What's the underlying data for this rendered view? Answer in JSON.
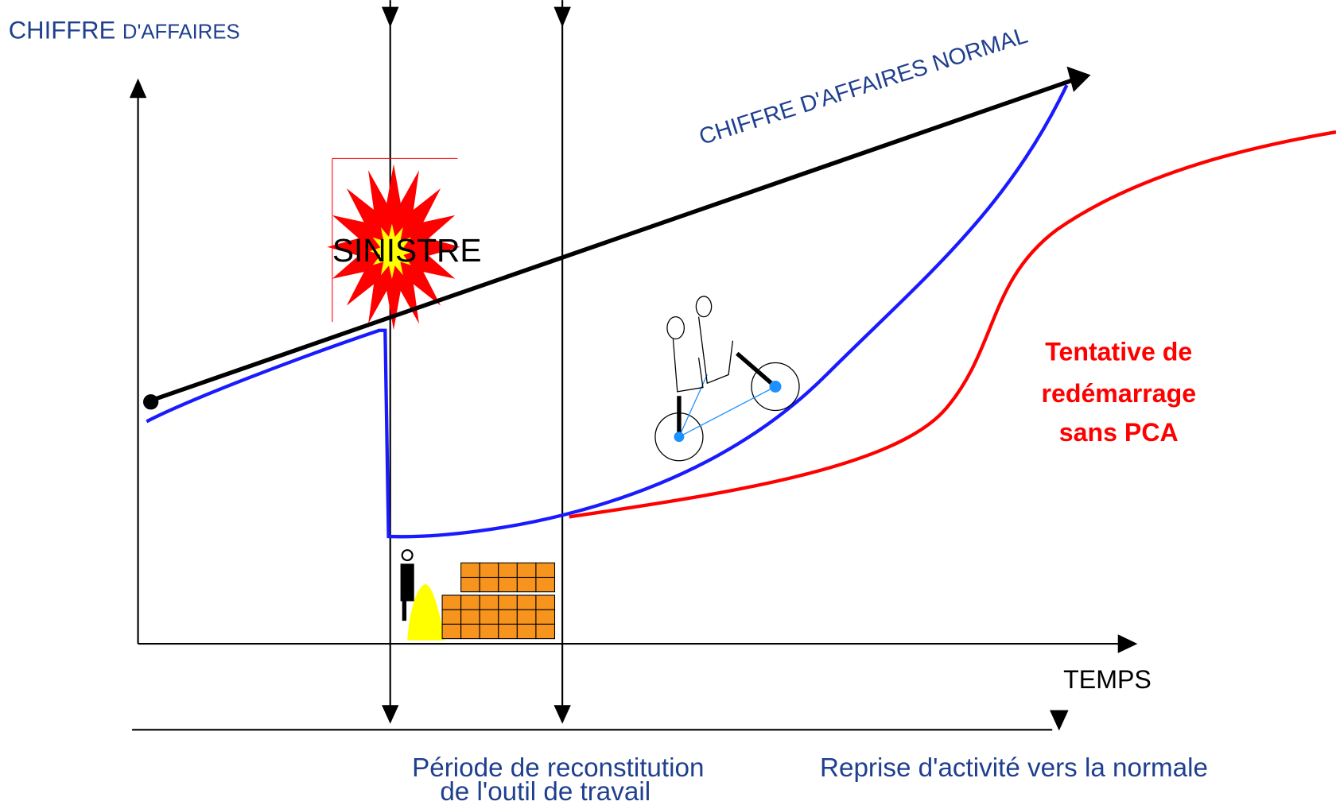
{
  "y_axis_label": {
    "main": "CHIFFRE",
    "rest": "D'AFFAIRES"
  },
  "normal_line_label": "CHIFFRE D'AFFAIRES NORMAL",
  "event_label": "SINISTRE",
  "red_curve_label": [
    "Tentative de",
    "redémarrage",
    "sans PCA"
  ],
  "x_axis_label": "TEMPS",
  "phases": [
    {
      "label": [
        "Période de reconstitution",
        "de l'outil de travail"
      ]
    },
    {
      "label": [
        "Reprise d'activité vers la normale"
      ]
    }
  ]
}
